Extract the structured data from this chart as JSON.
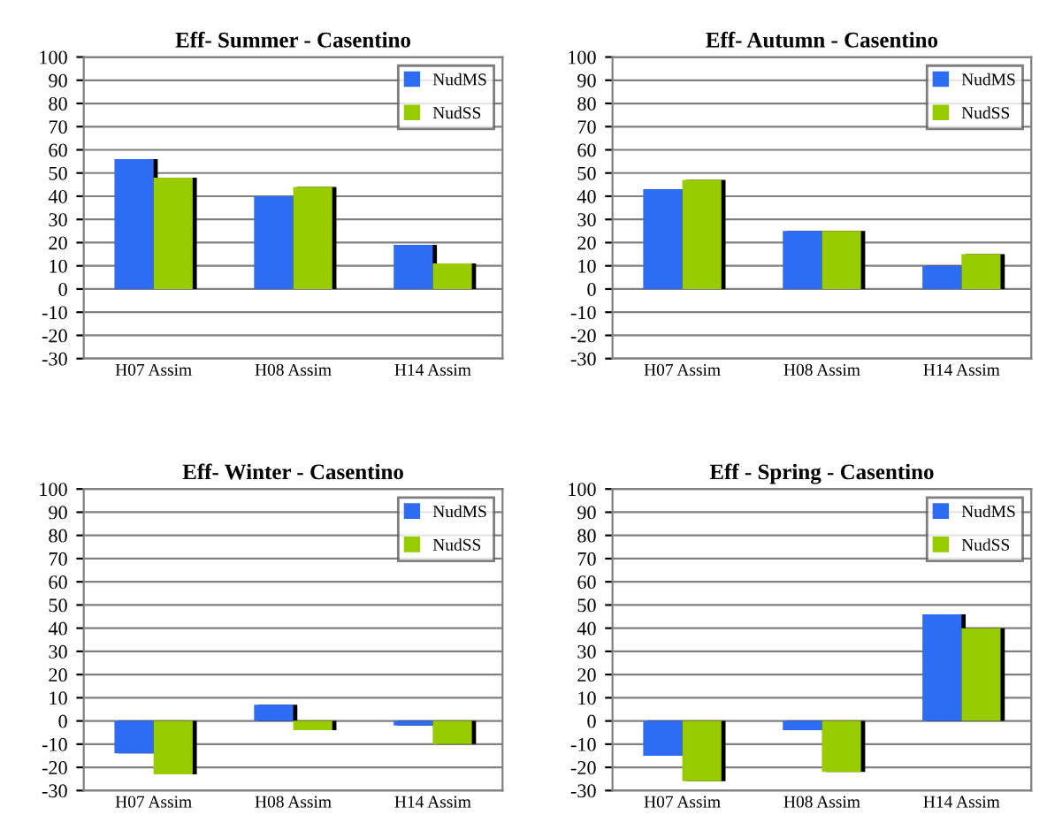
{
  "chart_data": [
    {
      "type": "bar",
      "title": "Eff- Summer - Casentino",
      "categories": [
        "H07 Assim",
        "H08 Assim",
        "H14 Assim"
      ],
      "series": [
        {
          "name": "NudMS",
          "color": "#2f6cf5",
          "values": [
            56,
            40,
            19
          ]
        },
        {
          "name": "NudSS",
          "color": "#99cc00",
          "values": [
            48,
            44,
            11
          ]
        }
      ],
      "ylim": [
        -30,
        100
      ],
      "yticks": [
        -30,
        -20,
        -10,
        0,
        10,
        20,
        30,
        40,
        50,
        60,
        70,
        80,
        90,
        100
      ],
      "grid": "y",
      "legend": "top right"
    },
    {
      "type": "bar",
      "title": "Eff- Autumn - Casentino",
      "categories": [
        "H07 Assim",
        "H08 Assim",
        "H14 Assim"
      ],
      "series": [
        {
          "name": "NudMS",
          "color": "#2f6cf5",
          "values": [
            43,
            25,
            10
          ]
        },
        {
          "name": "NudSS",
          "color": "#99cc00",
          "values": [
            47,
            25,
            15
          ]
        }
      ],
      "ylim": [
        -30,
        100
      ],
      "yticks": [
        -30,
        -20,
        -10,
        0,
        10,
        20,
        30,
        40,
        50,
        60,
        70,
        80,
        90,
        100
      ],
      "grid": "y",
      "legend": "top right"
    },
    {
      "type": "bar",
      "title": "Eff- Winter - Casentino",
      "categories": [
        "H07 Assim",
        "H08 Assim",
        "H14 Assim"
      ],
      "series": [
        {
          "name": "NudMS",
          "color": "#2f6cf5",
          "values": [
            -14,
            7,
            -2
          ]
        },
        {
          "name": "NudSS",
          "color": "#99cc00",
          "values": [
            -23,
            -4,
            -10
          ]
        }
      ],
      "ylim": [
        -30,
        100
      ],
      "yticks": [
        -30,
        -20,
        -10,
        0,
        10,
        20,
        30,
        40,
        50,
        60,
        70,
        80,
        90,
        100
      ],
      "grid": "y",
      "legend": "top right"
    },
    {
      "type": "bar",
      "title": "Eff - Spring - Casentino",
      "categories": [
        "H07 Assim",
        "H08 Assim",
        "H14 Assim"
      ],
      "series": [
        {
          "name": "NudMS",
          "color": "#2f6cf5",
          "values": [
            -15,
            -4,
            46
          ]
        },
        {
          "name": "NudSS",
          "color": "#99cc00",
          "values": [
            -26,
            -22,
            40
          ]
        }
      ],
      "ylim": [
        -30,
        100
      ],
      "yticks": [
        -30,
        -20,
        -10,
        0,
        10,
        20,
        30,
        40,
        50,
        60,
        70,
        80,
        90,
        100
      ],
      "grid": "y",
      "legend": "top right"
    }
  ]
}
